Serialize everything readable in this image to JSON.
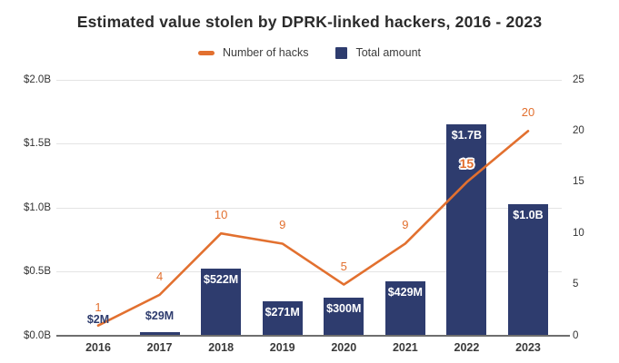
{
  "title": "Estimated value stolen by DPRK-linked hackers, 2016 - 2023",
  "legend": {
    "items": [
      {
        "label": "Number of hacks",
        "marker": "line-dash",
        "color": "#e2702f"
      },
      {
        "label": "Total amount",
        "marker": "square",
        "color": "#2e3c6e"
      }
    ]
  },
  "axes": {
    "left": {
      "tick_labels": [
        "$2.0B",
        "$1.5B",
        "$1.0B",
        "$0.5B",
        "$0.0B"
      ]
    },
    "right": {
      "tick_labels": [
        "25",
        "20",
        "15",
        "10",
        "5",
        "0"
      ]
    },
    "x": {
      "tick_labels": [
        "2016",
        "2017",
        "2018",
        "2019",
        "2020",
        "2021",
        "2022",
        "2023"
      ]
    }
  },
  "colors": {
    "bar_navy": "#2e3c6e",
    "line_orange": "#e2702f",
    "gridline": "#e4e4e4",
    "axis_line": "#6e6e6e",
    "text_dark": "#333333"
  },
  "chart_data": {
    "type": "bar",
    "subtype": "combo-bar-line",
    "title": "Estimated value stolen by DPRK-linked hackers, 2016 - 2023",
    "categories": [
      "2016",
      "2017",
      "2018",
      "2019",
      "2020",
      "2021",
      "2022",
      "2023"
    ],
    "series": [
      {
        "name": "Total amount",
        "type": "bar",
        "axis": "left",
        "unit": "million USD",
        "values": [
          2,
          29,
          522,
          271,
          300,
          429,
          1650,
          1030
        ],
        "labels": [
          "$2M",
          "$29M",
          "$522M",
          "$271M",
          "$300M",
          "$429M",
          "$1.7B",
          "$1.0B"
        ],
        "color": "#2e3c6e"
      },
      {
        "name": "Number of hacks",
        "type": "line",
        "axis": "right",
        "values": [
          1,
          4,
          10,
          9,
          5,
          9,
          15,
          20
        ],
        "labels": [
          "1",
          "4",
          "10",
          "9",
          "5",
          "9",
          "15",
          "20"
        ],
        "color": "#e2702f"
      }
    ],
    "ylim_left": [
      0,
      2000
    ],
    "ylim_right": [
      0,
      25
    ],
    "ylabel_left": "",
    "ylabel_right": "",
    "grid": "horizontal",
    "legend_position": "top"
  }
}
